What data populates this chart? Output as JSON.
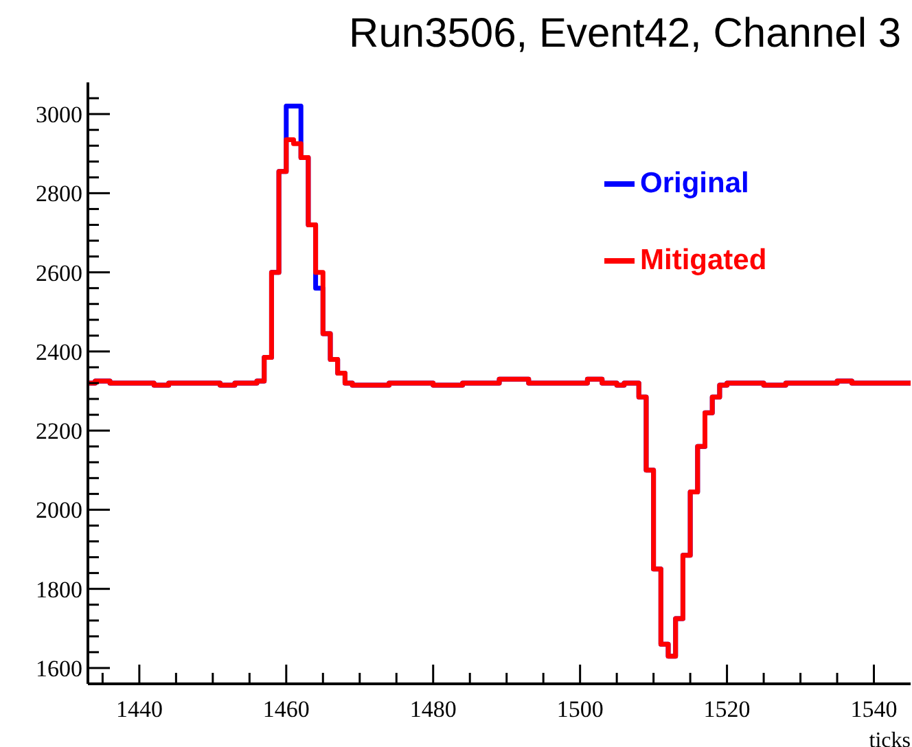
{
  "chart_data": {
    "type": "histogram",
    "title": "Run3506, Event42, Channel 3",
    "xlabel": "ticks",
    "bins": [
      1433,
      1434,
      1435,
      1436,
      1437,
      1438,
      1439,
      1440,
      1441,
      1442,
      1443,
      1444,
      1445,
      1446,
      1447,
      1448,
      1449,
      1450,
      1451,
      1452,
      1453,
      1454,
      1455,
      1456,
      1457,
      1458,
      1459,
      1460,
      1461,
      1462,
      1463,
      1464,
      1465,
      1466,
      1467,
      1468,
      1469,
      1470,
      1471,
      1472,
      1473,
      1474,
      1475,
      1476,
      1477,
      1478,
      1479,
      1480,
      1481,
      1482,
      1483,
      1484,
      1485,
      1486,
      1487,
      1488,
      1489,
      1490,
      1491,
      1492,
      1493,
      1494,
      1495,
      1496,
      1497,
      1498,
      1499,
      1500,
      1501,
      1502,
      1503,
      1504,
      1505,
      1506,
      1507,
      1508,
      1509,
      1510,
      1511,
      1512,
      1513,
      1514,
      1515,
      1516,
      1517,
      1518,
      1519,
      1520,
      1521,
      1522,
      1523,
      1524,
      1525,
      1526,
      1527,
      1528,
      1529,
      1530,
      1531,
      1532,
      1533,
      1534,
      1535,
      1536,
      1537,
      1538,
      1539,
      1540,
      1541,
      1542,
      1543,
      1544,
      1545
    ],
    "series": [
      {
        "name": "Original",
        "color": "#0000ff",
        "values": [
          2320,
          2325,
          2325,
          2320,
          2320,
          2320,
          2320,
          2320,
          2320,
          2315,
          2315,
          2320,
          2320,
          2320,
          2320,
          2320,
          2320,
          2320,
          2315,
          2315,
          2320,
          2320,
          2320,
          2325,
          2385,
          2600,
          2855,
          3020,
          3020,
          2890,
          2720,
          2560,
          2445,
          2380,
          2345,
          2320,
          2315,
          2315,
          2315,
          2315,
          2315,
          2320,
          2320,
          2320,
          2320,
          2320,
          2320,
          2315,
          2315,
          2315,
          2315,
          2320,
          2320,
          2320,
          2320,
          2320,
          2330,
          2330,
          2330,
          2330,
          2320,
          2320,
          2320,
          2320,
          2320,
          2320,
          2320,
          2320,
          2330,
          2330,
          2320,
          2320,
          2315,
          2320,
          2320,
          2285,
          2100,
          1850,
          1660,
          1630,
          1725,
          1885,
          2045,
          2160,
          2245,
          2285,
          2315,
          2320,
          2320,
          2320,
          2320,
          2320,
          2315,
          2315,
          2315,
          2320,
          2320,
          2320,
          2320,
          2320,
          2320,
          2320,
          2325,
          2325,
          2320,
          2320,
          2320,
          2320,
          2320,
          2320,
          2320,
          2320
        ]
      },
      {
        "name": "Mitigated",
        "color": "#ff0000",
        "values": [
          2320,
          2325,
          2325,
          2320,
          2320,
          2320,
          2320,
          2320,
          2320,
          2315,
          2315,
          2320,
          2320,
          2320,
          2320,
          2320,
          2320,
          2320,
          2315,
          2315,
          2320,
          2320,
          2320,
          2325,
          2385,
          2600,
          2855,
          2935,
          2925,
          2890,
          2720,
          2600,
          2445,
          2380,
          2345,
          2320,
          2315,
          2315,
          2315,
          2315,
          2315,
          2320,
          2320,
          2320,
          2320,
          2320,
          2320,
          2315,
          2315,
          2315,
          2315,
          2320,
          2320,
          2320,
          2320,
          2320,
          2330,
          2330,
          2330,
          2330,
          2320,
          2320,
          2320,
          2320,
          2320,
          2320,
          2320,
          2320,
          2330,
          2330,
          2320,
          2320,
          2315,
          2320,
          2320,
          2285,
          2100,
          1850,
          1660,
          1630,
          1725,
          1885,
          2045,
          2160,
          2245,
          2285,
          2315,
          2320,
          2320,
          2320,
          2320,
          2320,
          2315,
          2315,
          2315,
          2320,
          2320,
          2320,
          2320,
          2320,
          2320,
          2320,
          2325,
          2325,
          2320,
          2320,
          2320,
          2320,
          2320,
          2320,
          2320,
          2320
        ]
      }
    ],
    "xlim": [
      1433,
      1545
    ],
    "xticks": [
      {
        "value": 1435,
        "label": null
      },
      1440,
      {
        "value": 1445,
        "label": null
      },
      {
        "value": 1450,
        "label": null
      },
      {
        "value": 1455,
        "label": null
      },
      1460,
      {
        "value": 1465,
        "label": null
      },
      {
        "value": 1470,
        "label": null
      },
      {
        "value": 1475,
        "label": null
      },
      1480,
      {
        "value": 1485,
        "label": null
      },
      {
        "value": 1490,
        "label": null
      },
      {
        "value": 1495,
        "label": null
      },
      1500,
      {
        "value": 1505,
        "label": null
      },
      {
        "value": 1510,
        "label": null
      },
      {
        "value": 1515,
        "label": null
      },
      1520,
      {
        "value": 1525,
        "label": null
      },
      {
        "value": 1530,
        "label": null
      },
      {
        "value": 1535,
        "label": null
      },
      1540
    ],
    "ylim": [
      1560,
      3080
    ],
    "yticks": [
      1600,
      {
        "value": 1640,
        "label": null
      },
      {
        "value": 1680,
        "label": null
      },
      {
        "value": 1720,
        "label": null
      },
      {
        "value": 1760,
        "label": null
      },
      1800,
      {
        "value": 1840,
        "label": null
      },
      {
        "value": 1880,
        "label": null
      },
      {
        "value": 1920,
        "label": null
      },
      {
        "value": 1960,
        "label": null
      },
      2000,
      {
        "value": 2040,
        "label": null
      },
      {
        "value": 2080,
        "label": null
      },
      {
        "value": 2120,
        "label": null
      },
      {
        "value": 2160,
        "label": null
      },
      2200,
      {
        "value": 2240,
        "label": null
      },
      {
        "value": 2280,
        "label": null
      },
      {
        "value": 2320,
        "label": null
      },
      {
        "value": 2360,
        "label": null
      },
      2400,
      {
        "value": 2440,
        "label": null
      },
      {
        "value": 2480,
        "label": null
      },
      {
        "value": 2520,
        "label": null
      },
      {
        "value": 2560,
        "label": null
      },
      2600,
      {
        "value": 2640,
        "label": null
      },
      {
        "value": 2680,
        "label": null
      },
      {
        "value": 2720,
        "label": null
      },
      {
        "value": 2760,
        "label": null
      },
      2800,
      {
        "value": 2840,
        "label": null
      },
      {
        "value": 2880,
        "label": null
      },
      {
        "value": 2920,
        "label": null
      },
      {
        "value": 2960,
        "label": null
      },
      3000,
      {
        "value": 3040,
        "label": null
      }
    ],
    "legend": "top right",
    "grid": false
  }
}
